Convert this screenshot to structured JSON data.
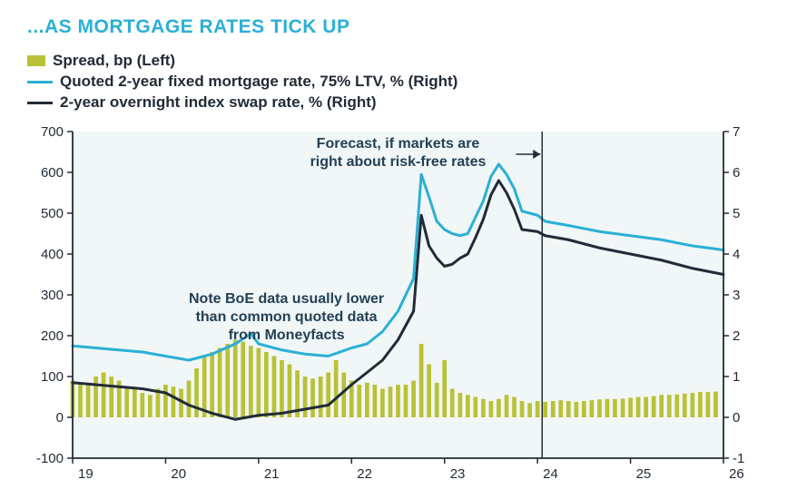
{
  "title": "...AS MORTGAGE RATES TICK UP",
  "title_color": "#2bb0d5",
  "legend": [
    {
      "type": "bar",
      "color": "#b9c236",
      "label": "Spread, bp (Left)"
    },
    {
      "type": "line",
      "color": "#2bb0d5",
      "label": "Quoted 2-year fixed mortgage rate, 75% LTV, % (Right)"
    },
    {
      "type": "line",
      "color": "#222b37",
      "label": "2-year overnight index swap rate, % (Right)"
    }
  ],
  "annotations": {
    "forecast": {
      "lines": [
        "Forecast, if markets are",
        "right about risk-free rates"
      ],
      "x_arrow_from": 22.5,
      "arrow_at_x": 24.05
    },
    "boe": {
      "lines": [
        "Note BoE data usually lower",
        "than common quoted data",
        "from Moneyfacts"
      ],
      "x_center": 21.3,
      "y_right": 2.8
    }
  },
  "chart": {
    "type": "combo-bar-twoline-dualaxis",
    "background_color": "#ffffff",
    "plot_fill": "#f1f6f7",
    "axis_color": "#222b37",
    "font_family": "sans-serif",
    "title_fontsize": 21,
    "legend_fontsize": 17,
    "tick_fontsize": 15,
    "annot_fontsize": 16,
    "x": {
      "min": 19,
      "max": 26,
      "ticks": [
        19,
        20,
        21,
        22,
        23,
        24,
        25,
        26
      ]
    },
    "y_left": {
      "min": -100,
      "max": 700,
      "step": 100
    },
    "y_right": {
      "min": -1,
      "max": 7,
      "step": 1
    },
    "forecast_x": 24.05,
    "bars": {
      "color": "#b9c236",
      "width_frac": 0.55,
      "x": [
        19.0,
        19.083,
        19.167,
        19.25,
        19.333,
        19.417,
        19.5,
        19.583,
        19.667,
        19.75,
        19.833,
        19.917,
        20.0,
        20.083,
        20.167,
        20.25,
        20.333,
        20.417,
        20.5,
        20.583,
        20.667,
        20.75,
        20.833,
        20.917,
        21.0,
        21.083,
        21.167,
        21.25,
        21.333,
        21.417,
        21.5,
        21.583,
        21.667,
        21.75,
        21.833,
        21.917,
        22.0,
        22.083,
        22.167,
        22.25,
        22.333,
        22.417,
        22.5,
        22.583,
        22.667,
        22.75,
        22.833,
        22.917,
        23.0,
        23.083,
        23.167,
        23.25,
        23.333,
        23.417,
        23.5,
        23.583,
        23.667,
        23.75,
        23.833,
        23.917,
        24.0,
        24.083,
        24.167,
        24.25,
        24.333,
        24.417,
        24.5,
        24.583,
        24.667,
        24.75,
        24.833,
        24.917,
        25.0,
        25.083,
        25.167,
        25.25,
        25.333,
        25.417,
        25.5,
        25.583,
        25.667,
        25.75,
        25.833,
        25.917
      ],
      "y": [
        90,
        80,
        85,
        100,
        110,
        100,
        90,
        70,
        70,
        60,
        55,
        70,
        80,
        75,
        70,
        90,
        120,
        150,
        160,
        170,
        180,
        190,
        185,
        175,
        170,
        160,
        150,
        140,
        130,
        115,
        100,
        95,
        100,
        110,
        140,
        110,
        90,
        80,
        85,
        80,
        70,
        75,
        80,
        80,
        90,
        180,
        130,
        85,
        140,
        70,
        60,
        55,
        50,
        45,
        40,
        45,
        55,
        50,
        40,
        35,
        40,
        38,
        40,
        42,
        40,
        38,
        40,
        42,
        44,
        45,
        45,
        46,
        48,
        50,
        50,
        52,
        55,
        55,
        56,
        58,
        60,
        62,
        62,
        63
      ]
    },
    "line_blue": {
      "color": "#2bb0d5",
      "width": 3,
      "x": [
        19.0,
        19.25,
        19.5,
        19.75,
        20.0,
        20.25,
        20.5,
        20.75,
        20.917,
        21.0,
        21.25,
        21.5,
        21.75,
        22.0,
        22.167,
        22.333,
        22.5,
        22.667,
        22.75,
        22.833,
        22.917,
        23.0,
        23.083,
        23.167,
        23.25,
        23.333,
        23.417,
        23.5,
        23.583,
        23.667,
        23.75,
        23.833,
        24.0,
        24.083,
        24.333,
        24.667,
        25.0,
        25.333,
        25.667,
        26.0
      ],
      "y": [
        1.75,
        1.7,
        1.65,
        1.6,
        1.5,
        1.4,
        1.55,
        1.8,
        2.05,
        1.8,
        1.65,
        1.55,
        1.5,
        1.7,
        1.8,
        2.1,
        2.6,
        3.4,
        5.95,
        5.4,
        4.8,
        4.6,
        4.5,
        4.45,
        4.5,
        4.9,
        5.3,
        5.9,
        6.2,
        5.95,
        5.6,
        5.05,
        4.95,
        4.8,
        4.7,
        4.55,
        4.45,
        4.35,
        4.2,
        4.1
      ]
    },
    "line_black": {
      "color": "#222b37",
      "width": 3,
      "x": [
        19.0,
        19.25,
        19.5,
        19.75,
        20.0,
        20.25,
        20.5,
        20.75,
        21.0,
        21.25,
        21.5,
        21.75,
        22.0,
        22.167,
        22.333,
        22.5,
        22.667,
        22.75,
        22.833,
        22.917,
        23.0,
        23.083,
        23.167,
        23.25,
        23.333,
        23.417,
        23.5,
        23.583,
        23.667,
        23.75,
        23.833,
        24.0,
        24.083,
        24.333,
        24.667,
        25.0,
        25.333,
        25.667,
        26.0
      ],
      "y": [
        0.85,
        0.8,
        0.75,
        0.7,
        0.6,
        0.3,
        0.1,
        -0.05,
        0.05,
        0.1,
        0.2,
        0.3,
        0.8,
        1.1,
        1.4,
        1.9,
        2.6,
        4.95,
        4.2,
        3.9,
        3.7,
        3.75,
        3.9,
        4.0,
        4.4,
        4.85,
        5.45,
        5.8,
        5.5,
        5.1,
        4.6,
        4.55,
        4.45,
        4.35,
        4.15,
        4.0,
        3.85,
        3.65,
        3.5
      ]
    }
  }
}
